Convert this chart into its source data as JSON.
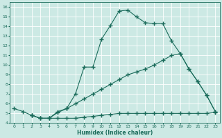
{
  "xlabel": "Humidex (Indice chaleur)",
  "ylabel": "",
  "bg_color": "#cce9e4",
  "grid_color": "#aad4cc",
  "line_color": "#1a6b5a",
  "xlim": [
    -0.5,
    23.5
  ],
  "ylim": [
    4,
    16.5
  ],
  "xticks": [
    0,
    1,
    2,
    3,
    4,
    5,
    6,
    7,
    8,
    9,
    10,
    11,
    12,
    13,
    14,
    15,
    16,
    17,
    18,
    19,
    20,
    21,
    22,
    23
  ],
  "yticks": [
    4,
    5,
    6,
    7,
    8,
    9,
    10,
    11,
    12,
    13,
    14,
    15,
    16
  ],
  "line1_x": [
    0,
    1,
    2,
    3,
    4,
    5,
    6,
    7,
    8,
    9,
    10,
    11,
    12,
    13,
    14,
    15,
    16,
    17,
    18,
    19,
    20,
    21,
    22,
    23
  ],
  "line1_y": [
    5.5,
    5.2,
    4.8,
    4.5,
    4.5,
    5.2,
    5.5,
    7.0,
    9.8,
    9.8,
    12.7,
    14.1,
    15.6,
    15.7,
    15.0,
    14.4,
    14.3,
    14.3,
    12.5,
    11.2,
    9.6,
    8.3,
    6.9,
    5.2
  ],
  "line2_x": [
    2,
    3,
    4,
    5,
    6,
    7,
    8,
    9,
    10,
    11,
    12,
    13,
    14,
    15,
    16,
    17,
    18,
    19,
    20,
    21,
    22,
    23
  ],
  "line2_y": [
    4.8,
    4.5,
    4.5,
    5.1,
    5.5,
    6.0,
    6.5,
    7.0,
    7.5,
    8.0,
    8.5,
    9.0,
    9.3,
    9.6,
    10.0,
    10.5,
    11.0,
    11.2,
    9.6,
    8.3,
    6.9,
    5.2
  ],
  "line3_x": [
    2,
    3,
    4,
    5,
    6,
    7,
    8,
    9,
    10,
    11,
    12,
    13,
    14,
    15,
    16,
    17,
    18,
    19,
    20,
    21,
    22,
    23
  ],
  "line3_y": [
    4.8,
    4.5,
    4.5,
    4.5,
    4.5,
    4.5,
    4.6,
    4.7,
    4.8,
    4.9,
    5.0,
    5.0,
    5.0,
    5.0,
    5.0,
    5.0,
    5.0,
    5.0,
    5.0,
    5.0,
    5.0,
    5.1
  ]
}
